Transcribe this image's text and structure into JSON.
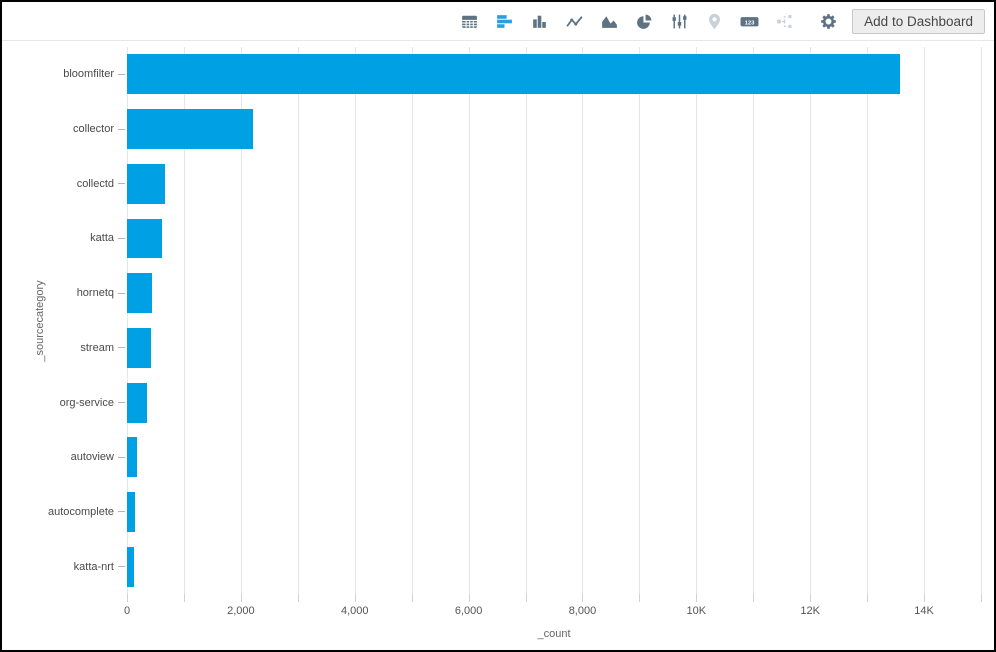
{
  "window": {
    "border_color": "#000000",
    "background": "#ffffff"
  },
  "toolbar": {
    "icons": [
      {
        "name": "table-icon",
        "state": "normal"
      },
      {
        "name": "bar-chart-horizontal-icon",
        "state": "selected"
      },
      {
        "name": "column-chart-icon",
        "state": "normal"
      },
      {
        "name": "line-chart-icon",
        "state": "normal"
      },
      {
        "name": "area-chart-icon",
        "state": "normal"
      },
      {
        "name": "pie-chart-icon",
        "state": "normal"
      },
      {
        "name": "settings-sliders-icon",
        "state": "normal"
      },
      {
        "name": "map-pin-icon",
        "state": "disabled"
      },
      {
        "name": "single-value-icon",
        "state": "normal",
        "glyph": "123"
      },
      {
        "name": "flow-icon",
        "state": "disabled"
      },
      {
        "name": "gear-icon",
        "state": "normal"
      }
    ],
    "add_to_dashboard": {
      "label": "Add to Dashboard"
    },
    "colors": {
      "icon": "#5d7283",
      "selected": "#2d9edd",
      "disabled": "#c9d1d8"
    }
  },
  "chart_data": {
    "type": "bar",
    "orientation": "horizontal",
    "title": "",
    "categories": [
      "bloomfilter",
      "collector",
      "collectd",
      "katta",
      "hornetq",
      "stream",
      "org-service",
      "autoview",
      "autocomplete",
      "katta-nrt"
    ],
    "values": [
      13580,
      2210,
      670,
      615,
      445,
      415,
      350,
      175,
      140,
      115
    ],
    "xlabel": "_count",
    "ylabel": "_sourcecategory",
    "xlim": [
      0,
      15000
    ],
    "grid": true,
    "grid_interval": 1000,
    "x_ticks": [
      {
        "value": 0,
        "label": "0"
      },
      {
        "value": 2000,
        "label": "2,000"
      },
      {
        "value": 4000,
        "label": "4,000"
      },
      {
        "value": 6000,
        "label": "6,000"
      },
      {
        "value": 8000,
        "label": "8,000"
      },
      {
        "value": 10000,
        "label": "10K"
      },
      {
        "value": 12000,
        "label": "12K"
      },
      {
        "value": 14000,
        "label": "14K"
      }
    ],
    "bar_color": "#00a1e4",
    "grid_color": "#e1e7ec",
    "legend": false
  }
}
